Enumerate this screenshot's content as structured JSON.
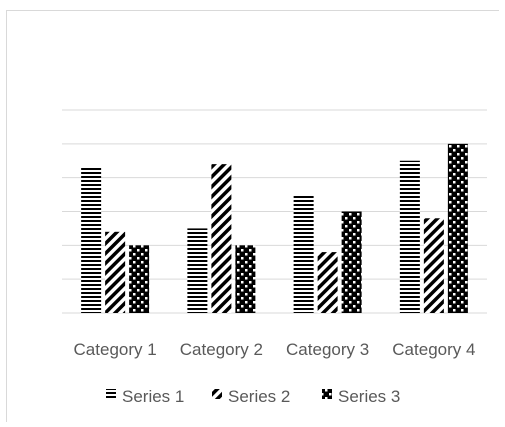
{
  "chart_data": {
    "type": "bar",
    "title": "",
    "xlabel": "",
    "ylabel": "",
    "categories": [
      "Category 1",
      "Category 2",
      "Category 3",
      "Category 4"
    ],
    "series": [
      {
        "name": "Series 1",
        "values": [
          4.3,
          2.5,
          3.5,
          4.5
        ]
      },
      {
        "name": "Series 2",
        "values": [
          2.4,
          4.4,
          1.8,
          2.8
        ]
      },
      {
        "name": "Series 3",
        "values": [
          2.0,
          2.0,
          3.0,
          5.0
        ]
      }
    ],
    "ylim": [
      0,
      6
    ],
    "grid": true,
    "legend_position": "bottom",
    "colors": {
      "bar": "#000000",
      "gridline": "#d9d9d9",
      "text": "#595959",
      "background": "#ffffff"
    }
  }
}
